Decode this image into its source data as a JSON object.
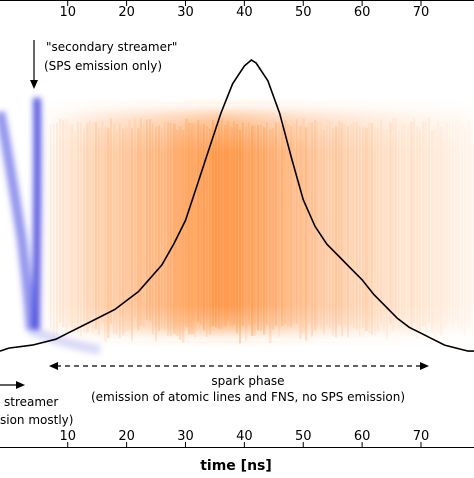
{
  "chart_data": {
    "type": "line",
    "xlabel": "time [ns]",
    "xlim": [
      -1.5,
      79
    ],
    "x_ticks": [
      10,
      20,
      30,
      40,
      50,
      60,
      70
    ],
    "top_ticks": [
      10,
      20,
      30,
      40,
      50,
      60,
      70
    ],
    "ylabel": "",
    "grid": false,
    "series": [
      {
        "x": [
          -1.5,
          0,
          4,
          8,
          10,
          14,
          18,
          22,
          26,
          28,
          30,
          32,
          34,
          36,
          38,
          40,
          41.2,
          42,
          44,
          46,
          48,
          50,
          52,
          54,
          56,
          58,
          60,
          62,
          64,
          66,
          68,
          70,
          72,
          74,
          76,
          78,
          79
        ],
        "y": [
          0.02,
          0.03,
          0.04,
          0.06,
          0.08,
          0.12,
          0.16,
          0.22,
          0.31,
          0.38,
          0.46,
          0.58,
          0.7,
          0.82,
          0.92,
          0.98,
          1.0,
          0.99,
          0.93,
          0.82,
          0.67,
          0.53,
          0.44,
          0.38,
          0.34,
          0.3,
          0.26,
          0.21,
          0.17,
          0.13,
          0.1,
          0.08,
          0.06,
          0.04,
          0.03,
          0.02,
          0.02
        ]
      }
    ],
    "colors": {
      "line": "#000000",
      "spark_emission": "#ff7f0e",
      "streamer_emission": "#2b2fd8"
    },
    "annotations": {
      "secondary": {
        "line1": "\"secondary streamer\"",
        "line2": "(SPS emission only)"
      },
      "primary": {
        "line1": "streamer",
        "line2": "sion mostly)"
      },
      "spark": {
        "line1": "spark phase",
        "line2": "(emission of atomic lines and FNS, no SPS emission)"
      }
    }
  }
}
